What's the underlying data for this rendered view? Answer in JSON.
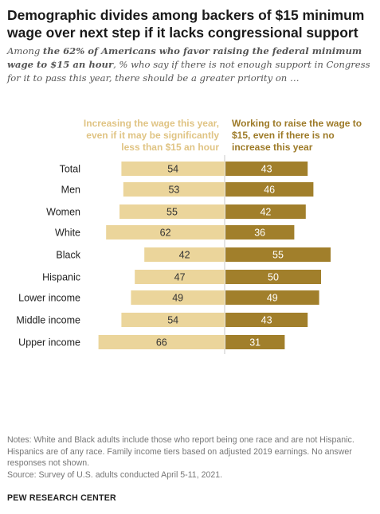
{
  "title": "Demographic divides among backers of $15 minimum wage over next step if it lacks congressional support",
  "subtitle": {
    "prefix": "Among ",
    "bold": "the 62% of Americans who favor raising the federal minimum wage to $15 an hour",
    "suffix": ", % who say if there is not enough support in Congress for it to pass this year, there should be a greater priority on …"
  },
  "colors": {
    "left": "#ebd59b",
    "right": "#a17f2b",
    "left_text": "#e0c484",
    "right_text": "#9d7a27",
    "divider": "#c8c8c8"
  },
  "chart_data": {
    "type": "bar",
    "orientation": "diverging-horizontal",
    "categories": [
      "Total",
      "Men",
      "Women",
      "White",
      "Black",
      "Hispanic",
      "Lower income",
      "Middle income",
      "Upper income"
    ],
    "groups": [
      [
        "Total"
      ],
      [
        "Men",
        "Women"
      ],
      [
        "White",
        "Black",
        "Hispanic"
      ],
      [
        "Lower income",
        "Middle income",
        "Upper income"
      ]
    ],
    "series": [
      {
        "name": "Increasing the wage this year, even if it may be significantly less than $15 an hour",
        "values": [
          54,
          53,
          55,
          62,
          42,
          47,
          49,
          54,
          66
        ]
      },
      {
        "name": "Working to raise the wage to $15, even if there is no increase this year",
        "values": [
          43,
          46,
          42,
          36,
          55,
          50,
          49,
          43,
          31
        ]
      }
    ]
  },
  "notes": [
    "Notes: White and Black adults include those who report being one race and are not Hispanic. Hispanics are of any race. Family income tiers based on adjusted 2019 earnings. No answer responses not shown.",
    "Source: Survey of U.S. adults conducted April 5-11, 2021."
  ],
  "brand": "PEW RESEARCH CENTER"
}
